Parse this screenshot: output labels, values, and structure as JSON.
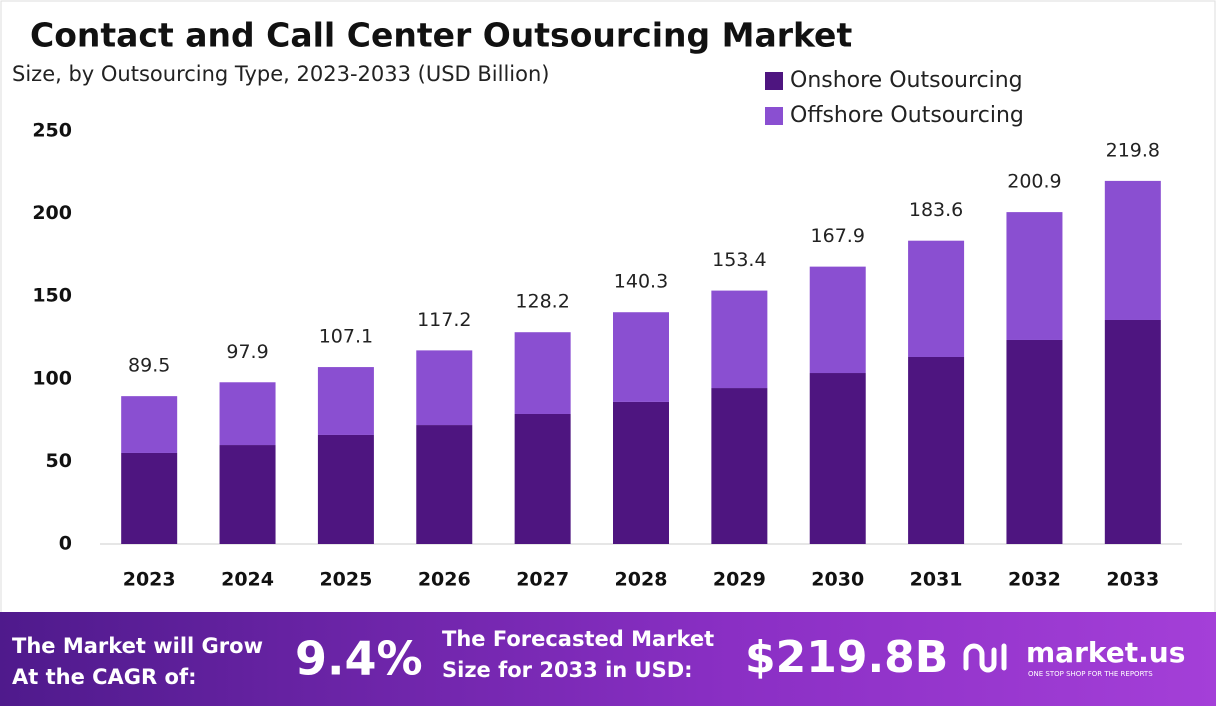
{
  "chart_data": {
    "type": "stacked_bar",
    "title": "Contact and Call Center Outsourcing Market",
    "subtitle": "Size, by Outsourcing Type, 2023-2033 (USD Billion)",
    "categories": [
      "2023",
      "2024",
      "2025",
      "2026",
      "2027",
      "2028",
      "2029",
      "2030",
      "2031",
      "2032",
      "2033"
    ],
    "series": [
      {
        "name": "Onshore Outsourcing",
        "color": "#4e1580",
        "values": [
          55.1,
          59.9,
          66.0,
          72.0,
          78.7,
          86.0,
          94.4,
          103.5,
          113.2,
          123.5,
          135.6
        ]
      },
      {
        "name": "Offshore Outsourcing",
        "color": "#8a4fd1",
        "values": [
          34.4,
          38.0,
          41.1,
          45.2,
          49.5,
          54.3,
          59.0,
          64.4,
          70.4,
          77.4,
          84.2
        ]
      }
    ],
    "totals": [
      89.5,
      97.9,
      107.1,
      117.2,
      128.2,
      140.3,
      153.4,
      167.9,
      183.6,
      200.9,
      219.8
    ],
    "ylim": [
      0,
      250
    ],
    "yticks": [
      0,
      50,
      100,
      150,
      200,
      250
    ],
    "grid": false,
    "legend": "top-right"
  },
  "footer": {
    "cagr_label": [
      "The Market will Grow",
      "At the CAGR of:"
    ],
    "cagr_value": "9.4%",
    "forecast_label": [
      "The Forecasted Market",
      "Size for 2033 in USD:"
    ],
    "forecast_value": "$219.8B",
    "brand": "market.us",
    "tagline": "ONE STOP SHOP FOR THE REPORTS"
  }
}
